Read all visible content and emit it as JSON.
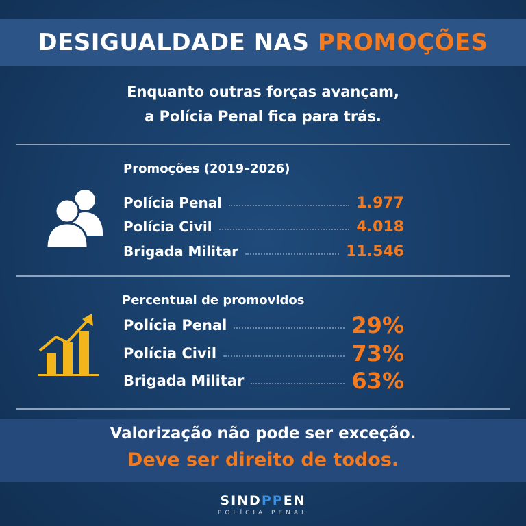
{
  "header": {
    "title_white": "DESIGUALDADE NAS",
    "title_orange": "PROMOÇÕES"
  },
  "subtitle": {
    "line1": "Enquanto outras forças avançam,",
    "line2": "a Polícia Penal fica para trás."
  },
  "promotions": {
    "heading": "Promoções (2019–2026)",
    "icon": "people-icon",
    "rows": [
      {
        "label": "Polícia Penal",
        "value": "1.977"
      },
      {
        "label": "Polícia Civil",
        "value": "4.018"
      },
      {
        "label": "Brigada Militar",
        "value": "11.546"
      }
    ]
  },
  "percent": {
    "heading": "Percentual de promovidos",
    "icon": "bar-chart-growth-icon",
    "rows": [
      {
        "label": "Polícia Penal",
        "value": "29%"
      },
      {
        "label": "Polícia Civil",
        "value": "73%"
      },
      {
        "label": "Brigada Militar",
        "value": "63%"
      }
    ]
  },
  "footer": {
    "line1": "Valorização não pode ser exceção.",
    "line2": "Deve ser direito de todos."
  },
  "brand": {
    "name_start": "SIND",
    "name_pp": "PP",
    "name_end": "EN",
    "subtitle": "POLÍCIA PENAL"
  },
  "colors": {
    "background": "#163a63",
    "accent": "#f47a1f",
    "icon_gold": "#f2b51c",
    "brand_blue": "#3b8ee0"
  }
}
